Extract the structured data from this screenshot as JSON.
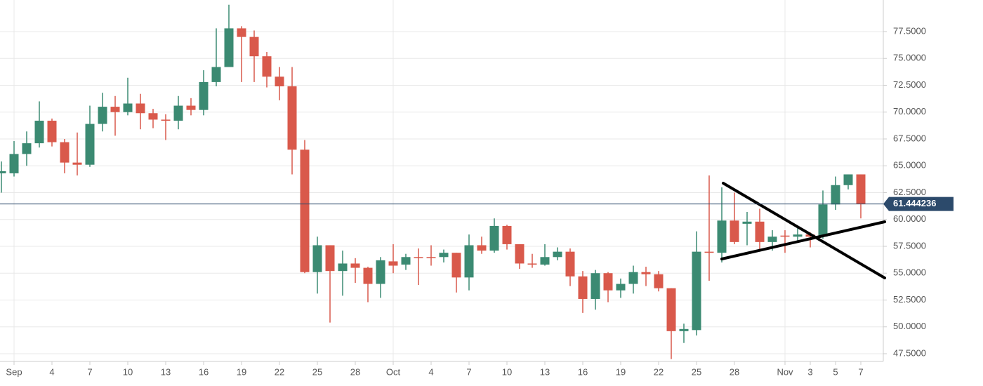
{
  "chart_data": {
    "type": "candlestick",
    "categories": [
      null,
      "Sep",
      null,
      null,
      "4",
      null,
      null,
      "7",
      null,
      null,
      "10",
      null,
      null,
      "13",
      null,
      null,
      "16",
      null,
      null,
      "19",
      null,
      null,
      "22",
      null,
      null,
      "25",
      null,
      null,
      "28",
      null,
      null,
      "Oct",
      null,
      null,
      "4",
      null,
      null,
      "7",
      null,
      null,
      "10",
      null,
      null,
      "13",
      null,
      null,
      "16",
      null,
      null,
      "19",
      null,
      null,
      "22",
      null,
      null,
      "25",
      null,
      null,
      "28",
      null,
      null,
      null,
      "Nov",
      null,
      "3",
      null,
      "5",
      null,
      "7"
    ],
    "open": [
      64.3,
      64.3,
      66.1,
      67.1,
      69.2,
      67.2,
      65.3,
      65.1,
      68.9,
      70.5,
      70.0,
      70.8,
      69.9,
      69.3,
      69.2,
      70.6,
      70.2,
      72.8,
      74.2,
      77.8,
      77.0,
      75.2,
      73.3,
      72.4,
      66.5,
      55.1,
      57.6,
      55.2,
      55.9,
      55.5,
      54.0,
      56.1,
      55.8,
      56.5,
      56.5,
      56.5,
      56.9,
      54.6,
      57.6,
      57.1,
      59.4,
      57.7,
      55.9,
      55.8,
      56.5,
      57.0,
      54.7,
      52.6,
      55.0,
      53.4,
      54.0,
      55.1,
      54.9,
      53.6,
      49.6,
      49.7,
      57.0,
      56.9,
      59.9,
      59.6,
      59.8,
      57.9,
      58.5,
      58.4,
      58.6,
      58.4,
      61.4,
      63.2,
      64.2
    ],
    "high": [
      65.4,
      67.3,
      68.2,
      71.0,
      69.4,
      67.5,
      68.1,
      70.6,
      71.8,
      71.5,
      73.2,
      71.7,
      70.3,
      69.8,
      71.5,
      71.3,
      73.9,
      77.8,
      80.0,
      78.0,
      77.6,
      75.6,
      74.2,
      74.2,
      67.4,
      58.4,
      57.6,
      57.1,
      56.4,
      55.6,
      56.5,
      57.7,
      56.8,
      57.3,
      57.6,
      57.2,
      56.9,
      58.6,
      58.4,
      60.1,
      59.5,
      57.7,
      56.8,
      57.7,
      57.4,
      57.3,
      55.2,
      55.3,
      55.1,
      54.5,
      55.7,
      55.6,
      55.2,
      53.6,
      50.3,
      58.9,
      64.1,
      63.0,
      62.5,
      60.7,
      61.0,
      59.0,
      59.0,
      59.3,
      58.8,
      62.7,
      64.0,
      64.2,
      64.2
    ],
    "low": [
      62.5,
      64.0,
      65.0,
      66.7,
      66.8,
      64.3,
      64.1,
      64.9,
      68.2,
      67.8,
      69.7,
      68.4,
      68.5,
      67.4,
      68.4,
      69.7,
      69.7,
      72.4,
      74.2,
      72.8,
      72.8,
      72.3,
      71.1,
      64.2,
      55.0,
      53.1,
      50.4,
      52.9,
      54.1,
      52.3,
      52.7,
      55.0,
      55.3,
      53.9,
      55.7,
      56.0,
      53.2,
      53.4,
      56.8,
      56.9,
      57.2,
      55.4,
      55.5,
      55.7,
      56.2,
      53.8,
      51.3,
      51.6,
      52.3,
      52.7,
      53.1,
      53.8,
      53.3,
      47.0,
      48.5,
      49.2,
      54.3,
      56.0,
      57.7,
      57.6,
      57.2,
      57.1,
      56.9,
      58.0,
      57.4,
      58.2,
      60.9,
      62.8,
      60.1
    ],
    "close": [
      64.5,
      66.1,
      67.1,
      69.2,
      67.2,
      65.3,
      65.1,
      68.9,
      70.5,
      70.0,
      70.8,
      69.9,
      69.3,
      69.2,
      70.6,
      70.2,
      72.8,
      74.2,
      77.8,
      77.0,
      75.2,
      73.3,
      72.4,
      66.5,
      55.1,
      57.6,
      55.2,
      55.9,
      55.5,
      54.0,
      56.2,
      55.7,
      56.5,
      56.4,
      56.4,
      56.9,
      54.6,
      57.6,
      57.1,
      59.4,
      57.7,
      55.9,
      55.8,
      56.5,
      57.0,
      54.7,
      52.6,
      55.0,
      53.4,
      54.0,
      55.1,
      54.9,
      53.6,
      49.6,
      49.8,
      57.0,
      56.9,
      59.9,
      57.9,
      59.8,
      57.9,
      58.4,
      58.4,
      58.6,
      58.4,
      61.4,
      63.2,
      64.2,
      61.444236
    ],
    "up_color": "#3b8a72",
    "down_color": "#d9594b",
    "last_price": 61.444236,
    "last_price_color": "#2c4a6b",
    "ylim": [
      46.78,
      80.44
    ],
    "yticks": [
      {
        "value": 47.5,
        "label": "47.5000"
      },
      {
        "value": 50,
        "label": "50.0000"
      },
      {
        "value": 52.5,
        "label": "52.5000"
      },
      {
        "value": 55,
        "label": "55.0000"
      },
      {
        "value": 57.5,
        "label": "57.5000"
      },
      {
        "value": 60,
        "label": "60.0000"
      },
      {
        "value": 62.5,
        "label": "62.5000"
      },
      {
        "value": 65,
        "label": "65.0000"
      },
      {
        "value": 67.5,
        "label": "67.5000"
      },
      {
        "value": 70,
        "label": "70.0000"
      },
      {
        "value": 72.5,
        "label": "72.5000"
      },
      {
        "value": 75,
        "label": "75.0000"
      },
      {
        "value": 77.5,
        "label": "77.5000"
      }
    ],
    "grid": true
  }
}
